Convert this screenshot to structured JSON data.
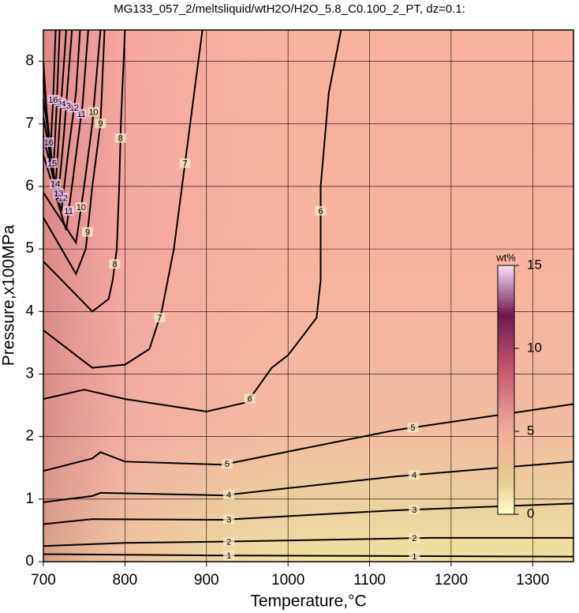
{
  "chart_data": {
    "type": "contour",
    "title": "MG133_057_2/meltsliquid/wtH2O/H2O_5.8_C0.100_2_PT, dz=0.1:",
    "x_label": "Temperature,°C",
    "y_label": "Pressure,x100MPa",
    "xlim": [
      700,
      1350
    ],
    "ylim": [
      0,
      8.5
    ],
    "xticks": [
      700,
      800,
      900,
      1000,
      1100,
      1200,
      1300
    ],
    "yticks": [
      0,
      1,
      2,
      3,
      4,
      5,
      6,
      7,
      8
    ],
    "grid": true,
    "contours": [
      {
        "level": 1,
        "x": [
          700,
          900,
          1350
        ],
        "y": [
          0.12,
          0.1,
          0.08
        ]
      },
      {
        "level": 2,
        "x": [
          700,
          800,
          920,
          1130,
          1175,
          1350
        ],
        "y": [
          0.25,
          0.3,
          0.32,
          0.37,
          0.38,
          0.38
        ]
      },
      {
        "level": 3,
        "x": [
          700,
          760,
          920,
          1130,
          1350
        ],
        "y": [
          0.6,
          0.68,
          0.67,
          0.82,
          0.93
        ]
      },
      {
        "level": 4,
        "x": [
          700,
          760,
          770,
          920,
          1130,
          1350
        ],
        "y": [
          0.95,
          1.05,
          1.1,
          1.06,
          1.36,
          1.6
        ]
      },
      {
        "level": 5,
        "x": [
          700,
          760,
          770,
          800,
          920,
          1130,
          1350
        ],
        "y": [
          1.45,
          1.65,
          1.75,
          1.6,
          1.55,
          2.1,
          2.52
        ]
      },
      {
        "level": 6,
        "x": [
          700,
          750,
          800,
          900,
          950,
          980,
          1000,
          1035,
          1040,
          1040,
          1050,
          1065
        ],
        "y": [
          2.6,
          2.75,
          2.6,
          2.4,
          2.55,
          3.1,
          3.3,
          3.9,
          4.5,
          6.0,
          7.5,
          8.5
        ]
      },
      {
        "level": 7,
        "x": [
          700,
          760,
          800,
          830,
          845,
          860,
          870,
          880,
          895
        ],
        "y": [
          3.7,
          3.1,
          3.15,
          3.4,
          4.0,
          5.0,
          6.0,
          7.0,
          8.5
        ]
      },
      {
        "level": 8,
        "x": [
          700,
          760,
          780,
          785,
          790,
          793,
          795,
          800
        ],
        "y": [
          4.8,
          4.0,
          4.2,
          4.5,
          5.0,
          6.0,
          7.0,
          8.5
        ]
      },
      {
        "level": 9,
        "x": [
          700,
          740,
          752,
          760,
          770,
          775
        ],
        "y": [
          5.5,
          4.6,
          5.0,
          6.0,
          7.0,
          8.5
        ]
      },
      {
        "level": 10,
        "x": [
          700,
          740,
          750,
          760,
          770
        ],
        "y": [
          5.9,
          5.1,
          6.0,
          7.0,
          8.5
        ]
      },
      {
        "level": 11,
        "x": [
          700,
          728,
          735,
          748,
          755
        ],
        "y": [
          6.5,
          5.3,
          6.0,
          7.3,
          8.5
        ]
      },
      {
        "level": 12,
        "x": [
          700,
          722,
          730,
          740,
          745
        ],
        "y": [
          6.8,
          5.6,
          6.5,
          7.5,
          8.5
        ]
      },
      {
        "level": 13,
        "x": [
          700,
          718,
          725,
          735
        ],
        "y": [
          7.1,
          5.8,
          6.8,
          8.5
        ]
      },
      {
        "level": 14,
        "x": [
          700,
          715,
          720,
          728
        ],
        "y": [
          7.4,
          6.0,
          7.0,
          8.5
        ]
      },
      {
        "level": 15,
        "x": [
          700,
          712,
          716,
          720
        ],
        "y": [
          7.7,
          6.2,
          7.2,
          8.5
        ]
      },
      {
        "level": 16,
        "x": [
          700,
          708,
          712,
          715
        ],
        "y": [
          8.0,
          6.4,
          7.4,
          8.5
        ]
      }
    ],
    "colorbar": {
      "label": "wt%",
      "lim": [
        0,
        15
      ],
      "ticks": [
        0,
        5,
        10,
        15
      ]
    }
  }
}
